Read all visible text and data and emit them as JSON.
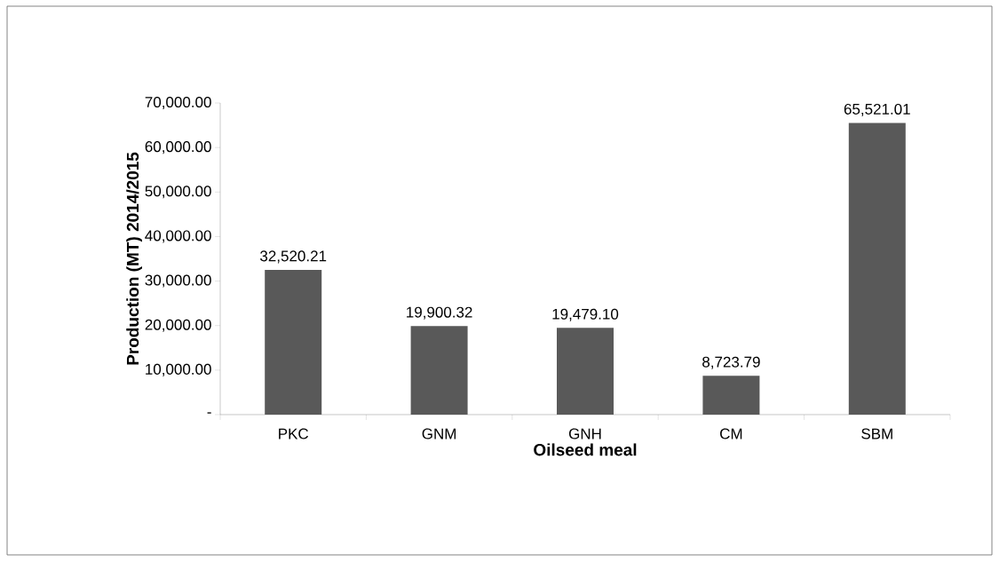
{
  "chart_data": {
    "type": "bar",
    "xlabel": "Oilseed meal",
    "ylabel": "Production (MT)  2014/2015",
    "categories": [
      "PKC",
      "GNM",
      "GNH",
      "CM",
      "SBM"
    ],
    "values": [
      32520.21,
      19900.32,
      19479.1,
      8723.79,
      65521.01
    ],
    "value_labels": [
      "32,520.21",
      "19,900.32",
      "19,479.10",
      "8,723.79",
      "65,521.01"
    ],
    "color": "#595959",
    "ylim": [
      0,
      70000
    ],
    "yticks": [
      {
        "value": 0,
        "label": "-"
      },
      {
        "value": 10000,
        "label": "10,000.00"
      },
      {
        "value": 20000,
        "label": "20,000.00"
      },
      {
        "value": 30000,
        "label": "30,000.00"
      },
      {
        "value": 40000,
        "label": "40,000.00"
      },
      {
        "value": 50000,
        "label": "50,000.00"
      },
      {
        "value": 60000,
        "label": "60,000.00"
      },
      {
        "value": 70000,
        "label": "70,000.00"
      }
    ],
    "grid": false
  }
}
